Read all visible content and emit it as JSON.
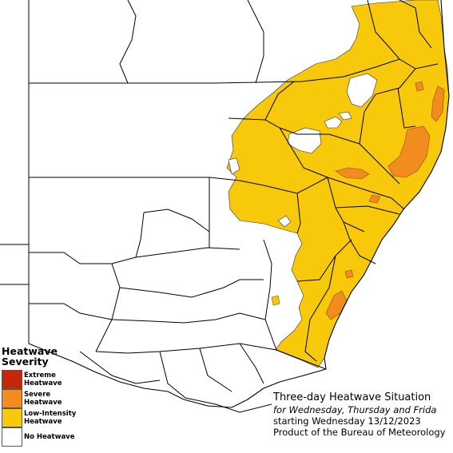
{
  "legend": {
    "title_line1": "Heatwave",
    "title_line2": "Severity",
    "items": [
      {
        "label_line1": "Extreme",
        "label_line2": "Heatwave",
        "color": "#c8260b"
      },
      {
        "label_line1": "Severe",
        "label_line2": "Heatwave",
        "color": "#f28c1f"
      },
      {
        "label_line1": "Low-Intensity",
        "label_line2": "Heatwave",
        "color": "#f7c90a"
      },
      {
        "label_line1": "No Heatwave",
        "label_line2": "",
        "color": "#ffffff"
      }
    ]
  },
  "info": {
    "title": "Three-day Heatwave Situation",
    "period": "for Wednesday, Thursday and Frida",
    "start": "starting Wednesday 13/12/2023",
    "source": "Product of the Bureau of Meteorology"
  },
  "colors": {
    "low_intensity": "#f7c90a",
    "severe": "#f28c1f",
    "boundary": "#000000"
  }
}
